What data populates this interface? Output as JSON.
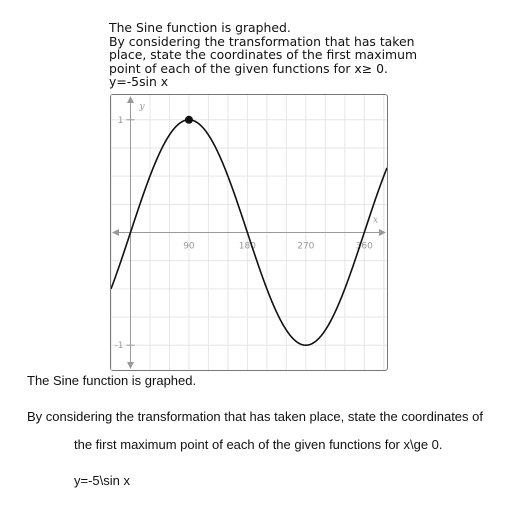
{
  "question": {
    "lines": [
      "The Sine function is graphed.",
      "By considering the transformation that has taken",
      "place, state the coordinates of the first maximum",
      "point of each of the given functions for x≥ 0.",
      "y=-5sin x"
    ]
  },
  "chart_data": {
    "type": "line",
    "title": "",
    "xlabel": "x",
    "ylabel": "y",
    "x_ticks": [
      90,
      180,
      270,
      360
    ],
    "x_tick_labels": [
      "90",
      "180",
      "270",
      "360"
    ],
    "y_ticks": [
      1,
      -1
    ],
    "y_tick_labels": [
      "1",
      "-1"
    ],
    "xlim": [
      -30,
      395
    ],
    "ylim": [
      -1.22,
      1.22
    ],
    "grid": true,
    "series": [
      {
        "function": "sin",
        "color": "#111111",
        "x": [
          -30,
          0,
          30,
          60,
          90,
          120,
          150,
          180,
          210,
          240,
          270,
          300,
          330,
          360,
          390
        ],
        "y": [
          -0.5,
          0,
          0.5,
          0.866,
          1,
          0.866,
          0.5,
          0,
          -0.5,
          -0.866,
          -1,
          -0.866,
          -0.5,
          0,
          0.5
        ]
      }
    ],
    "highlighted_point": {
      "x": 90,
      "y": 1
    }
  },
  "text_below": {
    "line1": "The Sine function is graphed.",
    "line2": "By considering the transformation that has taken place, state the coordinates of",
    "line3": "the first maximum point of each of the given functions for x\\ge 0.",
    "line4": "y=-5\\sin x"
  }
}
